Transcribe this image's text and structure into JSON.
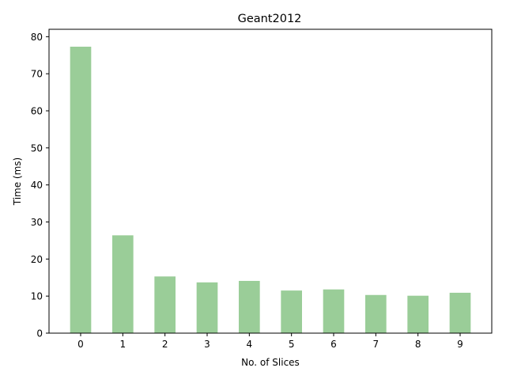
{
  "chart_data": {
    "type": "bar",
    "title": "Geant2012",
    "xlabel": "No. of Slices",
    "ylabel": "Time (ms)",
    "categories": [
      "0",
      "1",
      "2",
      "3",
      "4",
      "5",
      "6",
      "7",
      "8",
      "9"
    ],
    "values": [
      77.3,
      26.4,
      15.3,
      13.7,
      14.1,
      11.5,
      11.8,
      10.3,
      10.1,
      10.9
    ],
    "ylim": [
      0,
      82
    ],
    "yticks": [
      0,
      10,
      20,
      30,
      40,
      50,
      60,
      70,
      80
    ],
    "bar_color": "#9acd98",
    "grid": false
  }
}
